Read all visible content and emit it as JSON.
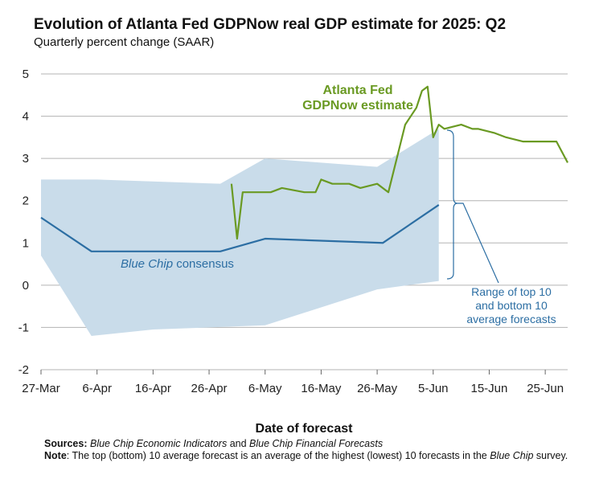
{
  "title": "Evolution of Atlanta Fed GDPNow real GDP estimate for 2025: Q2",
  "subtitle": "Quarterly percent change (SAAR)",
  "notes": {
    "sources_label": "Sources:",
    "sources_text_1": "Blue Chip Economic Indicators",
    "sources_and": " and ",
    "sources_text_2": "Blue Chip Financial Forecasts",
    "note_label": "Note",
    "note_text_1": ": The top (bottom) 10 average forecast is an average of the highest (lowest) 10 forecasts in the ",
    "note_text_2": "Blue Chip",
    "note_text_3": " survey."
  },
  "colors": {
    "gdpnow": "#6a9a23",
    "bluechip": "#2c6ea3",
    "range_fill": "#c9dcea",
    "grid": "#b3b3b3"
  },
  "chart_data": {
    "type": "line",
    "title": "Evolution of Atlanta Fed GDPNow real GDP estimate for 2025: Q2",
    "subtitle": "Quarterly percent change (SAAR)",
    "xlabel": "Date of forecast",
    "ylabel": "",
    "ylim": [
      -2,
      5
    ],
    "yticks": [
      5,
      4,
      3,
      2,
      1,
      0,
      -1,
      -2
    ],
    "yticklabels": [
      "5",
      "4",
      "3",
      "2",
      "1",
      "0",
      "-1",
      "-2"
    ],
    "xlim_day": [
      0,
      94
    ],
    "xticks_day": [
      0,
      10,
      20,
      30,
      40,
      50,
      60,
      70,
      80,
      90
    ],
    "xticklabels": [
      "27-Mar",
      "6-Apr",
      "16-Apr",
      "26-Apr",
      "6-May",
      "16-May",
      "26-May",
      "5-Jun",
      "15-Jun",
      "25-Jun"
    ],
    "grid": true,
    "legend": "inline labels",
    "annotations": [
      {
        "name": "gdpnow",
        "lines": [
          "Atlanta Fed",
          "GDPNow estimate"
        ]
      },
      {
        "name": "bluechip",
        "italic": "Blue Chip",
        "rest": " consensus"
      },
      {
        "name": "range",
        "lines": [
          "Range of top 10",
          "and bottom 10",
          "average forecasts"
        ]
      }
    ],
    "range_band": {
      "name": "Range of top 10 and bottom 10 average forecasts",
      "top": [
        [
          0,
          2.5
        ],
        [
          10,
          2.5
        ],
        [
          32,
          2.4
        ],
        [
          40,
          3.0
        ],
        [
          60,
          2.8
        ],
        [
          71,
          3.7
        ]
      ],
      "bottom": [
        [
          0,
          0.7
        ],
        [
          9,
          -1.2
        ],
        [
          20,
          -1.05
        ],
        [
          40,
          -0.95
        ],
        [
          60,
          -0.1
        ],
        [
          71,
          0.1
        ]
      ]
    },
    "series": [
      {
        "name": "Blue Chip consensus",
        "x_day": [
          0,
          9,
          32,
          40,
          61,
          71
        ],
        "values": [
          1.6,
          0.8,
          0.8,
          1.1,
          1.0,
          1.9
        ]
      },
      {
        "name": "Atlanta Fed GDPNow estimate",
        "x_day": [
          34,
          35,
          36,
          39,
          41,
          43,
          45,
          47,
          49,
          50,
          52,
          54,
          55,
          57,
          60,
          62,
          65,
          67,
          68,
          69,
          70,
          71,
          72,
          75,
          77,
          78,
          81,
          83,
          86,
          89,
          90,
          92,
          94
        ],
        "values": [
          2.4,
          1.1,
          2.2,
          2.2,
          2.2,
          2.3,
          2.25,
          2.2,
          2.2,
          2.5,
          2.4,
          2.4,
          2.4,
          2.3,
          2.4,
          2.2,
          3.8,
          4.2,
          4.6,
          4.7,
          3.5,
          3.8,
          3.7,
          3.8,
          3.7,
          3.7,
          3.6,
          3.5,
          3.4,
          3.4,
          3.4,
          3.4,
          2.9
        ]
      }
    ]
  }
}
